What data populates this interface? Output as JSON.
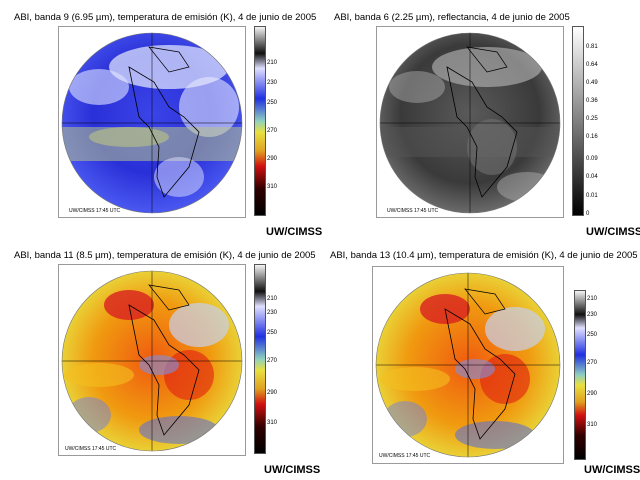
{
  "panels": [
    {
      "id": "band9",
      "title": "ABI, banda 9 (6.95 µm), temperatura de emisión (K), 4 de junio de 2005",
      "stamp": "UW/CIMSS 17:45 UTC",
      "credit": "UW/CIMSS",
      "ticks": [
        "210",
        "230",
        "250",
        "270",
        "290",
        "310"
      ],
      "palette": "ir-blue"
    },
    {
      "id": "band6",
      "title": "ABI, banda 6 (2.25 µm), reflectancia, 4 de junio de 2005",
      "stamp": "UW/CIMSS 17:45 UTC",
      "credit": "UW/CIMSS",
      "ticks": [
        "0.81",
        "0.64",
        "0.49",
        "0.36",
        "0.25",
        "0.16",
        "0.09",
        "0.04",
        "0.01",
        "0"
      ],
      "palette": "grayscale"
    },
    {
      "id": "band11",
      "title": "ABI, banda 11 (8.5 µm), temperatura de emisión (K), 4 de junio de 2005",
      "stamp": "UW/CIMSS 17:45 UTC",
      "credit": "UW/CIMSS",
      "ticks": [
        "210",
        "230",
        "250",
        "270",
        "290",
        "310"
      ],
      "palette": "ir-warm"
    },
    {
      "id": "band13",
      "title": "ABI, banda 13 (10.4 µm), temperatura de emisión (K), 4 de junio de 2005",
      "stamp": "UW/CIMSS 17:45 UTC",
      "credit": "UW/CIMSS",
      "ticks": [
        "210",
        "230",
        "250",
        "270",
        "290",
        "310"
      ],
      "palette": "ir-warm"
    }
  ],
  "colors": {
    "ir_gradient": [
      "#f4f4f4",
      "#101010",
      "#e0e0ff",
      "#2030e0",
      "#8fd0c0",
      "#e8e040",
      "#e0a020",
      "#d01010",
      "#300000",
      "#000000"
    ],
    "gray_gradient": [
      "#ffffff",
      "#000000"
    ]
  }
}
